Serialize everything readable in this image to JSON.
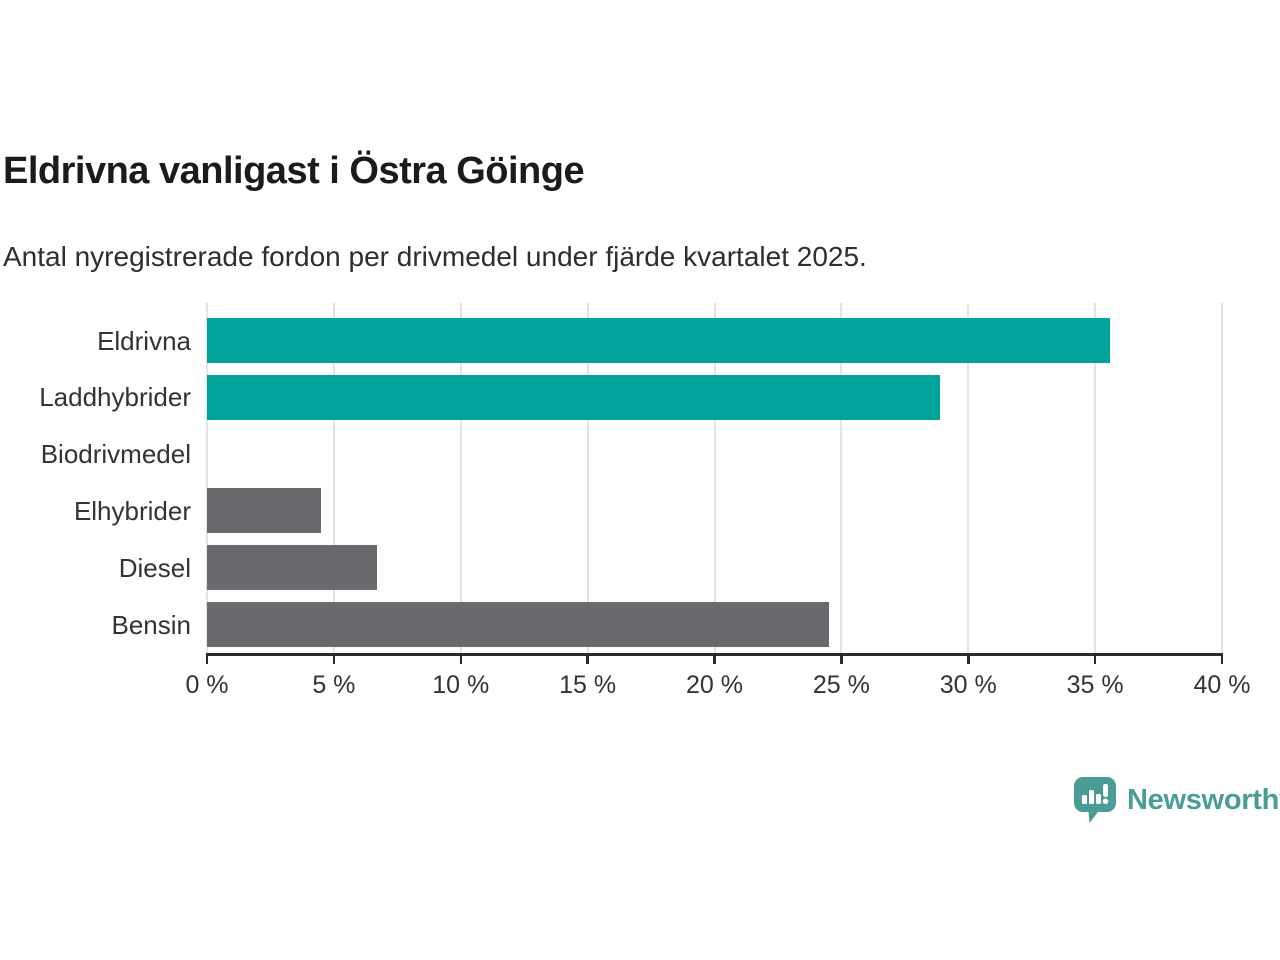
{
  "chart_data": {
    "type": "bar",
    "orientation": "horizontal",
    "title": "Eldrivna vanligast i Östra Göinge",
    "subtitle": "Antal nyregistrerade fordon per drivmedel under fjärde kvartalet 2025.",
    "categories": [
      "Eldrivna",
      "Laddhybrider",
      "Biodrivmedel",
      "Elhybrider",
      "Diesel",
      "Bensin"
    ],
    "values": [
      35.6,
      28.9,
      0,
      4.5,
      6.7,
      24.5
    ],
    "unit": "%",
    "bar_colors": [
      "#00a49b",
      "#00a49b",
      "#6a6a6e",
      "#6a6a6e",
      "#6a6a6e",
      "#6a6a6e"
    ],
    "accent_color": "#00a49b",
    "neutral_color": "#6a6a6e",
    "xlim": [
      0,
      40
    ],
    "xticks": [
      0,
      5,
      10,
      15,
      20,
      25,
      30,
      35,
      40
    ],
    "xtick_labels": [
      "0 %",
      "5 %",
      "10 %",
      "15 %",
      "20 %",
      "25 %",
      "30 %",
      "35 %",
      "40 %"
    ],
    "grid": true,
    "gridline_color": "#e3e3e3",
    "axis_color": "#2b2b2b",
    "legend": "none"
  },
  "branding": {
    "logo_text": "Newsworthy",
    "logo_color": "#4a9c96",
    "logo_icon": "bar-chart-speech-bubble-icon"
  }
}
